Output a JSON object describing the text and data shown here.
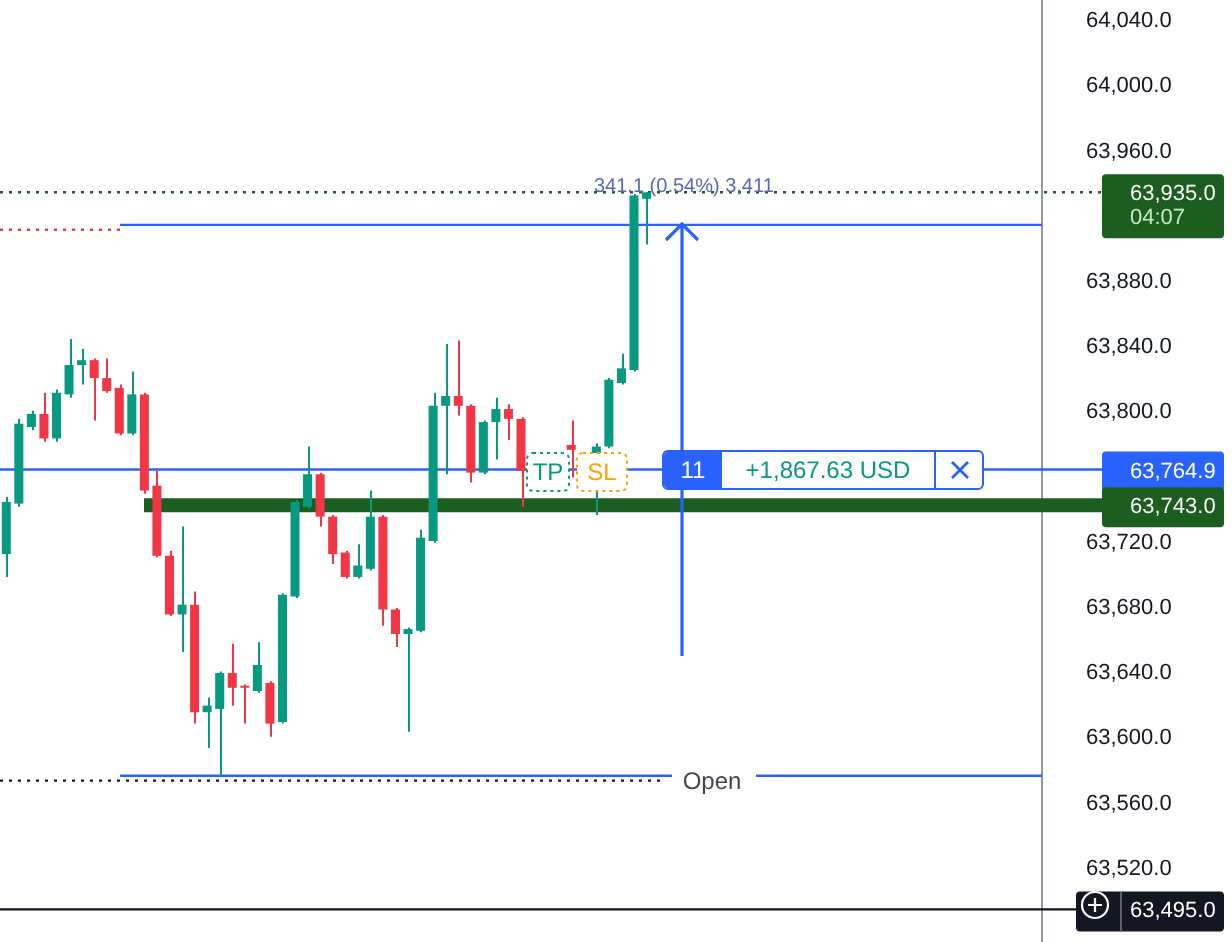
{
  "chart_data": {
    "type": "candlestick",
    "categories": [
      null,
      null,
      null,
      null,
      null,
      null,
      null,
      null,
      null,
      null,
      null,
      null,
      null,
      null,
      null,
      null,
      null,
      null,
      null,
      null,
      null,
      null,
      null,
      null,
      null,
      null,
      null,
      null,
      null,
      null,
      null,
      null,
      null,
      null,
      null,
      null,
      null,
      null,
      null,
      null,
      null,
      null,
      null,
      null,
      null,
      null,
      null,
      null,
      null,
      null,
      null,
      null,
      null,
      null,
      null,
      null,
      null,
      null,
      null,
      null,
      null,
      null,
      null,
      null,
      null,
      null,
      null,
      null,
      null,
      null,
      null,
      null,
      null,
      null,
      null,
      null,
      null,
      null,
      null,
      null,
      null,
      null,
      null
    ],
    "ohlc": [
      [
        63713,
        63748,
        63699,
        63745
      ],
      [
        63744,
        63796,
        63742,
        63793
      ],
      [
        63791,
        63801,
        63789,
        63799
      ],
      [
        63799,
        63812,
        63782,
        63784
      ],
      [
        63784,
        63814,
        63782,
        63812
      ],
      [
        63811,
        63845,
        63809,
        63829
      ],
      [
        63829,
        63839,
        63817,
        63832
      ],
      [
        63832,
        63833,
        63795,
        63821
      ],
      [
        63821,
        63833,
        63812,
        63813
      ],
      [
        63815,
        63817,
        63786,
        63787
      ],
      [
        63787,
        63825,
        63786,
        63811
      ],
      [
        63811,
        63812,
        63750,
        63752
      ],
      [
        63755,
        63764,
        63711,
        63712
      ],
      [
        63712,
        63715,
        63675,
        63676
      ],
      [
        63676,
        63730,
        63653,
        63682
      ],
      [
        63682,
        63690,
        63609,
        63616
      ],
      [
        63616,
        63625,
        63594,
        63620
      ],
      [
        63618,
        63641,
        63577,
        63640
      ],
      [
        63640,
        63658,
        63620,
        63631
      ],
      [
        63632,
        63633,
        63609,
        63631
      ],
      [
        63629,
        63659,
        63628,
        63645
      ],
      [
        63634,
        63635,
        63601,
        63609
      ],
      [
        63610,
        63689,
        63609,
        63688
      ],
      [
        63687,
        63746,
        63686,
        63745
      ],
      [
        63742,
        63779,
        63741,
        63762
      ],
      [
        63762,
        63763,
        63730,
        63736
      ],
      [
        63736,
        63737,
        63707,
        63713
      ],
      [
        63714,
        63715,
        63698,
        63699
      ],
      [
        63699,
        63719,
        63698,
        63706
      ],
      [
        63704,
        63752,
        63703,
        63736
      ],
      [
        63736,
        63737,
        63669,
        63679
      ],
      [
        63679,
        63680,
        63656,
        63664
      ],
      [
        63664,
        63668,
        63604,
        63667
      ],
      [
        63666,
        63728,
        63665,
        63723
      ],
      [
        63721,
        63812,
        63720,
        63804
      ],
      [
        63804,
        63842,
        63762,
        63810
      ],
      [
        63810,
        63844,
        63798,
        63804
      ],
      [
        63804,
        63805,
        63757,
        63763
      ],
      [
        63763,
        63795,
        63762,
        63794
      ],
      [
        63794,
        63809,
        63771,
        63802
      ],
      [
        63802,
        63805,
        63783,
        63796
      ],
      [
        63796,
        63797,
        63742,
        63764
      ],
      null,
      null,
      null,
      [
        63780,
        63795,
        63760,
        63777
      ],
      null,
      [
        63775,
        63781,
        63737,
        63779
      ],
      [
        63779,
        63821,
        63778,
        63820
      ],
      [
        63818,
        63836,
        63817,
        63827
      ],
      [
        63826,
        63934,
        63825,
        63933
      ],
      [
        63931,
        63935,
        63903,
        63935
      ],
      null,
      null,
      null,
      null,
      null,
      null,
      null,
      null,
      null,
      null,
      null,
      null,
      null,
      null,
      null,
      null,
      null,
      null,
      null,
      null,
      null,
      null,
      null,
      null,
      null,
      null,
      null,
      null,
      null,
      null,
      null
    ],
    "colors": [
      "#089981",
      "#089981",
      "#089981",
      "#f23645",
      "#089981",
      "#089981",
      "#089981",
      "#f23645",
      "#f23645",
      "#f23645",
      "#089981",
      "#f23645",
      "#f23645",
      "#f23645",
      "#089981",
      "#f23645",
      "#089981",
      "#089981",
      "#f23645",
      "#f23645",
      "#089981",
      "#f23645",
      "#089981",
      "#089981",
      "#089981",
      "#f23645",
      "#f23645",
      "#f23645",
      "#089981",
      "#089981",
      "#f23645",
      "#f23645",
      "#089981",
      "#089981",
      "#089981",
      "#089981",
      "#f23645",
      "#f23645",
      "#089981",
      "#089981",
      "#f23645",
      "#f23645",
      null,
      null,
      null,
      "#f23645",
      null,
      "#089981",
      "#089981",
      "#089981",
      "#089981",
      "#089981",
      null,
      null,
      null,
      null,
      null,
      null,
      null,
      null,
      null,
      null,
      null,
      null,
      null,
      null,
      null,
      null,
      null,
      null,
      null,
      null,
      null,
      null,
      null,
      null,
      null,
      null,
      null,
      null,
      null,
      null,
      null
    ],
    "ylim": [
      63475,
      64053
    ],
    "yticks": [
      {
        "value": 63520,
        "label": "63,520.0"
      },
      {
        "value": 63560,
        "label": "63,560.0"
      },
      {
        "value": 63600,
        "label": "63,600.0"
      },
      {
        "value": 63640,
        "label": "63,640.0"
      },
      {
        "value": 63680,
        "label": "63,680.0"
      },
      {
        "value": 63720,
        "label": "63,720.0"
      },
      {
        "value": 63800,
        "label": "63,800.0"
      },
      {
        "value": 63840,
        "label": "63,840.0"
      },
      {
        "value": 63880,
        "label": "63,880.0"
      },
      {
        "value": 63960,
        "label": "63,960.0"
      },
      {
        "value": 64000,
        "label": "64,000.0"
      },
      {
        "value": 64040,
        "label": "64,040.0"
      }
    ],
    "grid": false,
    "legend": false,
    "ref_lines": [
      {
        "axis": "y",
        "value": 63935,
        "label": "63,935.0\n04:07",
        "color": "#1b5e20",
        "line_style": "dotted"
      },
      {
        "axis": "y",
        "value": 63764.9,
        "label": "63,764.9",
        "color": "#2962ff",
        "line_style": "solid"
      },
      {
        "axis": "y",
        "value": 63743,
        "label": "63,743.0",
        "color": "#1b5e20",
        "line_style": "solid"
      },
      {
        "axis": "y",
        "value": 63495,
        "label": "63,495.0",
        "color": "#131722",
        "line_style": "solid"
      },
      {
        "axis": "y",
        "value": 63915,
        "color": "#2962ff",
        "line_style": "solid"
      },
      {
        "axis": "y",
        "value": 63912,
        "color": "#f23645",
        "line_style": "dotted"
      },
      {
        "axis": "y",
        "value": 63577,
        "color": "#2962ff",
        "line_style": "solid"
      },
      {
        "axis": "y",
        "value": 63574,
        "color": "#131722",
        "line_style": "dotted"
      }
    ],
    "annotations": [
      "341.1 (0.54%) 3,411",
      "TP",
      "SL",
      "11",
      "+1,867.63 USD",
      "Open"
    ]
  }
}
